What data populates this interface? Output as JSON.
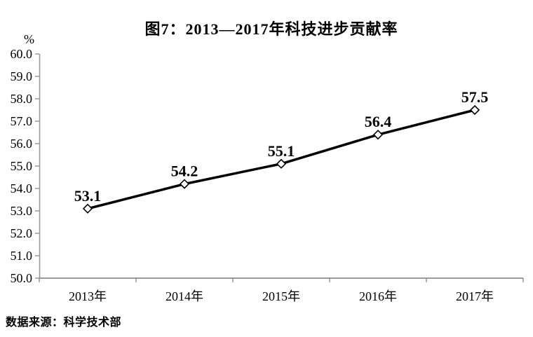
{
  "chart_data": {
    "type": "line",
    "title": "图7：2013—2017年科技进步贡献率",
    "unit_label": "%",
    "categories": [
      "2013年",
      "2014年",
      "2015年",
      "2016年",
      "2017年"
    ],
    "values": [
      53.1,
      54.2,
      55.1,
      56.4,
      57.5
    ],
    "data_labels": [
      "53.1",
      "54.2",
      "55.1",
      "56.4",
      "57.5"
    ],
    "ylim": [
      50.0,
      60.0
    ],
    "ytick_step": 1.0,
    "ytick_labels": [
      "50.0",
      "51.0",
      "52.0",
      "53.0",
      "54.0",
      "55.0",
      "56.0",
      "57.0",
      "58.0",
      "59.0",
      "60.0"
    ],
    "grid": false,
    "legend": "none",
    "marker": "open-diamond",
    "line_color": "#000000",
    "marker_fill": "#ffffff",
    "marker_stroke": "#000000",
    "axis_color": "#9b9b9b",
    "tick_color": "#7f7f7f",
    "source": "数据来源：科学技术部"
  }
}
